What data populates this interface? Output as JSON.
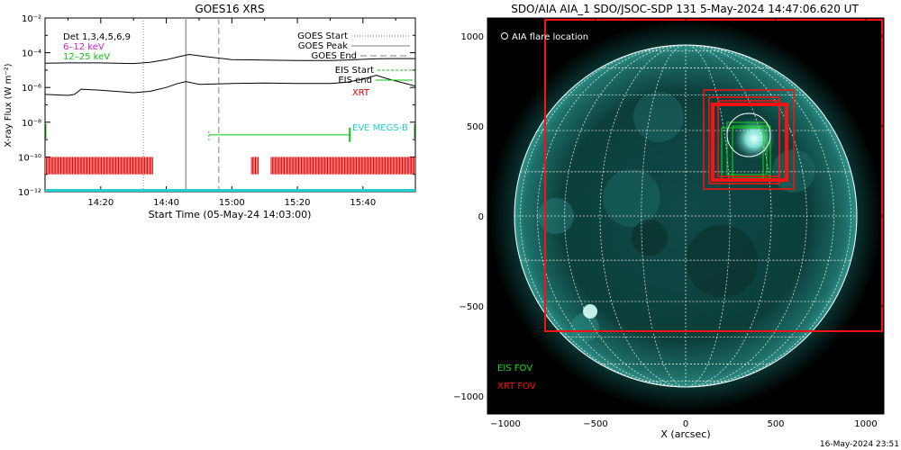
{
  "footer": {
    "timestamp": "16-May-2024 23:51"
  },
  "chart_data": [
    {
      "type": "line",
      "title": "GOES16 XRS",
      "xlabel": "Start Time (05-May-24 14:03:00)",
      "ylabel": "X-ray Flux (W m⁻²)",
      "y_scale": "log",
      "ylim": [
        1e-12,
        0.01
      ],
      "y_ticks": [
        {
          "label": "10⁻²",
          "value": 0.01
        },
        {
          "label": "10⁻⁴",
          "value": 0.0001
        },
        {
          "label": "10⁻⁶",
          "value": 1e-06
        },
        {
          "label": "10⁻⁸",
          "value": 1e-08
        },
        {
          "label": "10⁻¹⁰",
          "value": 1e-10
        },
        {
          "label": "10⁻¹²",
          "value": 1e-12
        }
      ],
      "xlim": [
        "14:03",
        "15:56"
      ],
      "x_ticks": [
        "14:20",
        "14:40",
        "15:00",
        "15:20",
        "15:40"
      ],
      "x_minor_ticks": [
        "14:10",
        "14:30",
        "14:50",
        "15:10",
        "15:30",
        "15:50"
      ],
      "grid": false,
      "legend_top_left": [
        {
          "text": "Det 1,3,4,5,6,9",
          "color": "#000000"
        },
        {
          "text": "6–12 keV",
          "color": "#d020d0"
        },
        {
          "text": "12–25 keV",
          "color": "#10c010"
        }
      ],
      "legend_top_right": [
        {
          "text": "GOES Start",
          "style": "dotted",
          "color": "#808080"
        },
        {
          "text": "GOES Peak",
          "style": "solid",
          "color": "#808080"
        },
        {
          "text": "GOES End",
          "style": "dashed",
          "color": "#808080"
        }
      ],
      "legend_mid_right": [
        {
          "text": "EIS Start",
          "style": "dashed",
          "color": "#10c010"
        },
        {
          "text": "EIS end",
          "style": "solid",
          "color": "#10c010"
        },
        {
          "text": "XRT",
          "style": "text",
          "color": "#e00000"
        }
      ],
      "annotation_eve": {
        "text": "EVE MEGS-B",
        "color": "#20d0d0"
      },
      "goes_times": {
        "start": "14:33",
        "peak": "14:46",
        "end": "14:56"
      },
      "series": [
        {
          "name": "upper",
          "color": "#000000",
          "x": [
            "14:03",
            "14:10",
            "14:20",
            "14:30",
            "14:35",
            "14:40",
            "14:44",
            "14:47",
            "14:52",
            "15:00",
            "15:10",
            "15:20",
            "15:30",
            "15:35",
            "15:40",
            "15:45",
            "15:50",
            "15:56"
          ],
          "y": [
            2.5e-05,
            2.6e-05,
            2.6e-05,
            2.4e-05,
            2.8e-05,
            4e-05,
            6e-05,
            8e-05,
            6e-05,
            4e-05,
            3.8e-05,
            3.6e-05,
            3.6e-05,
            3.8e-05,
            4.2e-05,
            4.5e-05,
            4.6e-05,
            4.6e-05
          ]
        },
        {
          "name": "lower",
          "color": "#000000",
          "x": [
            "14:03",
            "14:10",
            "14:12",
            "14:14",
            "14:20",
            "14:30",
            "14:35",
            "14:40",
            "14:43",
            "14:46",
            "14:50",
            "15:00",
            "15:10",
            "15:20",
            "15:30",
            "15:35",
            "15:40",
            "15:44",
            "15:48",
            "15:56"
          ],
          "y": [
            4e-07,
            3.5e-07,
            4e-07,
            8e-07,
            7e-07,
            5e-07,
            6e-07,
            1e-06,
            1.6e-06,
            2.2e-06,
            1.5e-06,
            1.7e-06,
            1.8e-06,
            1.7e-06,
            1.7e-06,
            2e-06,
            3e-06,
            5e-06,
            3e-06,
            1.2e-06
          ]
        }
      ],
      "eis_marks": [
        {
          "x": "14:53",
          "y": 3e-09,
          "kind": "start"
        },
        {
          "x": "15:36",
          "y": 1.5e-09,
          "kind": "end"
        }
      ],
      "xrt_observations": {
        "y_range": [
          1e-10,
          1e-11
        ],
        "color": "#e00000",
        "ranges": [
          [
            "14:03",
            "14:36"
          ],
          [
            "15:06",
            "15:08"
          ],
          [
            "15:12",
            "15:56"
          ]
        ]
      },
      "eve_megs_b": {
        "y": 1e-12,
        "range": [
          "14:03",
          "15:56"
        ],
        "color": "#20d0d0"
      }
    },
    {
      "type": "image",
      "title": "SDO/AIA AIA_1 SDO/JSOC-SDP 131  5-May-2024 14:47:06.620 UT",
      "xlabel": "X (arcsec)",
      "ylabel": "",
      "xlim": [
        -1100,
        1100
      ],
      "ylim": [
        -1100,
        1100
      ],
      "x_ticks": [
        -1000,
        -500,
        0,
        500,
        1000
      ],
      "y_ticks": [
        1000,
        500,
        0,
        -500,
        -1000
      ],
      "x_tick_labels": [
        "−1000",
        "−500",
        "0",
        "500",
        "1000"
      ],
      "y_tick_labels": [
        "1000",
        "500",
        "0",
        "−500",
        "−1000"
      ],
      "solar_radius": 950,
      "grid": true,
      "flare_location_label": "AIA flare location",
      "flare_location": [
        350,
        450
      ],
      "fov_legend": [
        {
          "text": "EIS FOV",
          "color": "#10e010"
        },
        {
          "text": "XRT FOV",
          "color": "#ff1010"
        }
      ],
      "xrt_fov_boxes": [
        {
          "x0": -780,
          "x1": 1090,
          "y0": -640,
          "y1": 1090
        },
        {
          "x0": 100,
          "x1": 600,
          "y0": 150,
          "y1": 700
        },
        {
          "x0": 130,
          "x1": 520,
          "y0": 180,
          "y1": 660
        },
        {
          "x0": 150,
          "x1": 560,
          "y0": 200,
          "y1": 620
        },
        {
          "x0": 180,
          "x1": 520,
          "y0": 220,
          "y1": 640
        }
      ],
      "eis_fov_boxes": [
        {
          "x0": 200,
          "x1": 430,
          "y0": 200,
          "y1": 490
        },
        {
          "x0": 230,
          "x1": 450,
          "y0": 230,
          "y1": 520
        },
        {
          "x0": 260,
          "x1": 470,
          "y0": 210,
          "y1": 500
        }
      ]
    }
  ]
}
